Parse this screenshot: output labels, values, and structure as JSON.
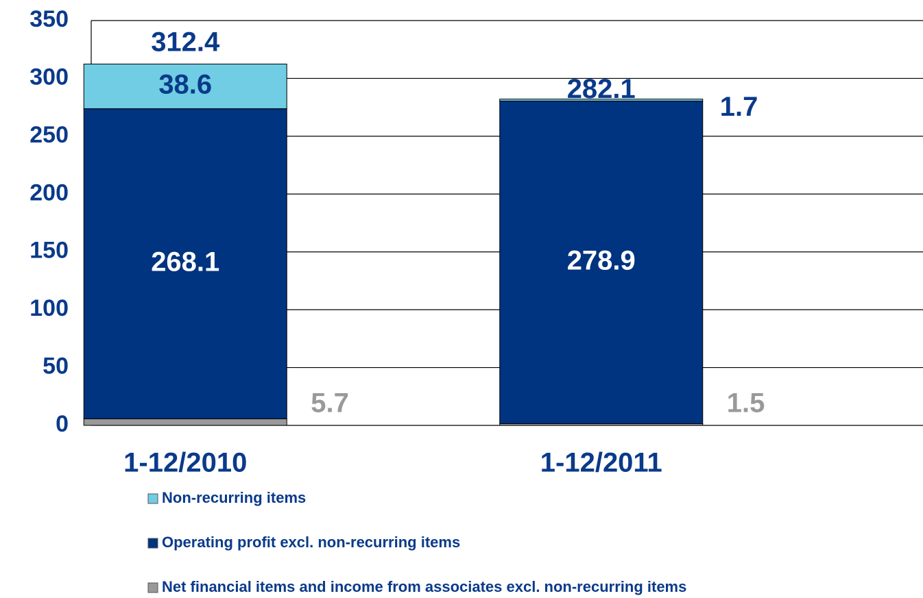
{
  "chart_data": {
    "type": "stacked_bar",
    "categories": [
      "1-12/2010",
      "1-12/2011"
    ],
    "series": [
      {
        "name": "Net financial items and income from associates excl. non-recurring items",
        "color": "#999999",
        "values": [
          5.7,
          1.5
        ]
      },
      {
        "name": "Operating profit excl. non-recurring items",
        "color": "#003380",
        "values": [
          268.1,
          278.9
        ]
      },
      {
        "name": "Non-recurring items",
        "color": "#70cde3",
        "values": [
          38.6,
          1.7
        ]
      }
    ],
    "totals": [
      312.4,
      282.1
    ],
    "ylim": [
      0,
      350
    ],
    "yticks": [
      0,
      50,
      100,
      150,
      200,
      250,
      300,
      350
    ],
    "grid": true
  }
}
